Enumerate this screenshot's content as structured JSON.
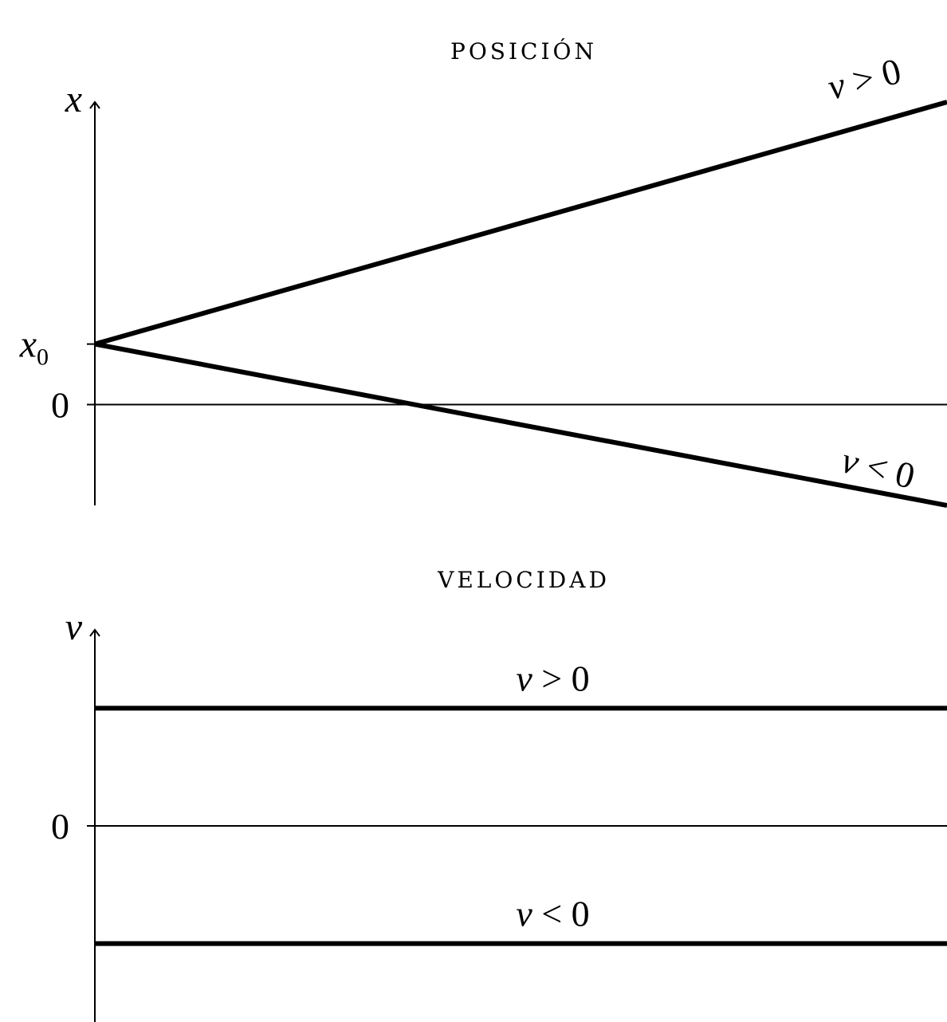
{
  "chart_data": [
    {
      "type": "line",
      "title": "posición",
      "ylabel_var": "x",
      "yticks": [
        {
          "var": "x",
          "sub": "0",
          "text": "",
          "value": 3
        },
        {
          "var": "",
          "sub": "",
          "text": "0",
          "value": 0
        }
      ],
      "xlim": [
        0,
        10
      ],
      "ylim": [
        -5,
        15
      ],
      "series": [
        {
          "label_var": "v",
          "label_rest": " > 0",
          "x": [
            0,
            10
          ],
          "y": [
            3,
            15
          ]
        },
        {
          "label_var": "v",
          "label_rest": " < 0",
          "x": [
            0,
            10
          ],
          "y": [
            3,
            -5
          ]
        }
      ]
    },
    {
      "type": "line",
      "title": "velocidad",
      "ylabel_var": "v",
      "yticks": [
        {
          "var": "",
          "sub": "",
          "text": "0",
          "value": 0
        }
      ],
      "xlim": [
        0,
        10
      ],
      "ylim": [
        -5,
        5
      ],
      "series": [
        {
          "label_var": "v",
          "label_rest": " > 0",
          "x": [
            0,
            10
          ],
          "y": [
            3,
            3
          ]
        },
        {
          "label_var": "v",
          "label_rest": " < 0",
          "x": [
            0,
            10
          ],
          "y": [
            -3,
            -3
          ]
        }
      ]
    }
  ]
}
